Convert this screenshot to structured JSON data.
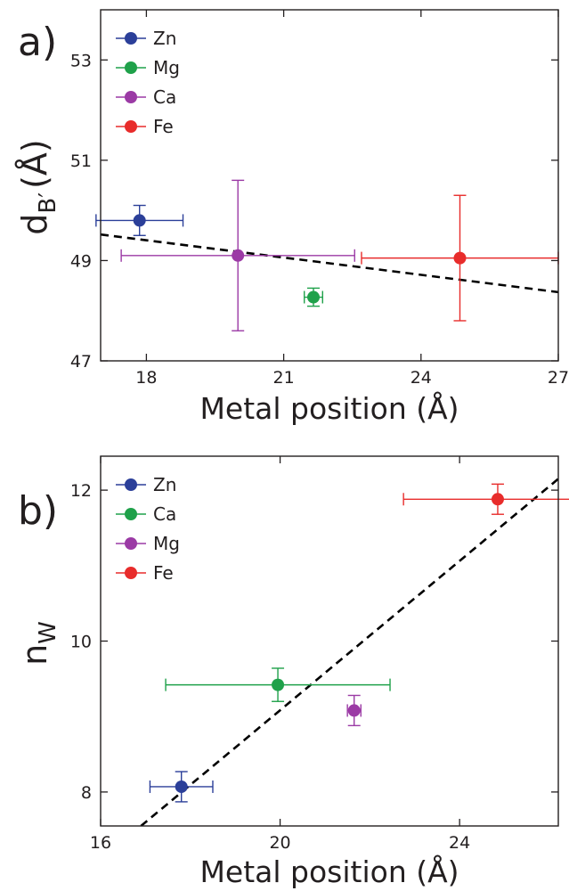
{
  "chart_data": [
    {
      "type": "scatter",
      "panel_label": "a)",
      "xlabel": "Metal position (Å)",
      "ylabel_main": "d",
      "ylabel_sub": "B′",
      "ylabel_rest": "(Å)",
      "xlim": [
        17.0,
        27.0
      ],
      "ylim": [
        47.0,
        54.0
      ],
      "xticks": [
        "18",
        "21",
        "24",
        "27"
      ],
      "xtick_values": [
        18,
        21,
        24,
        27
      ],
      "yticks": [
        "47",
        "49",
        "51",
        "53"
      ],
      "ytick_values": [
        47,
        49,
        51,
        53
      ],
      "grid": false,
      "legend_position": "top-left",
      "series": [
        {
          "name": "Zn",
          "color": "#2b3f99",
          "x": 17.85,
          "y": 49.8,
          "xerr": 0.95,
          "yerr": 0.3
        },
        {
          "name": "Mg",
          "color": "#1fa14a",
          "x": 21.65,
          "y": 48.27,
          "xerr": 0.2,
          "yerr": 0.18
        },
        {
          "name": "Ca",
          "color": "#9b3aa5",
          "x": 20.0,
          "y": 49.1,
          "xerr": 2.55,
          "yerr": 1.5
        },
        {
          "name": "Fe",
          "color": "#e82c2b",
          "x": 24.85,
          "y": 49.05,
          "xerr": 2.15,
          "yerr": 1.25
        }
      ],
      "fit_line": {
        "style": "dashed",
        "x": [
          17.0,
          27.0
        ],
        "y": [
          49.52,
          48.37
        ]
      }
    },
    {
      "type": "scatter",
      "panel_label": "b)",
      "xlabel": "Metal position (Å)",
      "ylabel_main": "n",
      "ylabel_sub": "W",
      "ylabel_rest": "",
      "xlim": [
        16.0,
        26.2
      ],
      "ylim": [
        7.55,
        12.45
      ],
      "xticks": [
        "16",
        "20",
        "24"
      ],
      "xtick_values": [
        16,
        20,
        24
      ],
      "yticks": [
        "8",
        "10",
        "12"
      ],
      "ytick_values": [
        8,
        10,
        12
      ],
      "grid": false,
      "legend_position": "top-left",
      "series": [
        {
          "name": "Zn",
          "color": "#2b3f99",
          "x": 17.8,
          "y": 8.07,
          "xerr": 0.7,
          "yerr": 0.2
        },
        {
          "name": "Ca",
          "color": "#1fa14a",
          "x": 19.95,
          "y": 9.42,
          "xerr": 2.5,
          "yerr": 0.22
        },
        {
          "name": "Mg",
          "color": "#9b3aa5",
          "x": 21.65,
          "y": 9.08,
          "xerr": 0.15,
          "yerr": 0.2
        },
        {
          "name": "Fe",
          "color": "#e82c2b",
          "x": 24.85,
          "y": 11.88,
          "xerr": 2.1,
          "yerr": 0.2
        }
      ],
      "fit_line": {
        "style": "dashed",
        "x": [
          16.9,
          26.2
        ],
        "y": [
          7.55,
          12.15
        ]
      }
    }
  ]
}
